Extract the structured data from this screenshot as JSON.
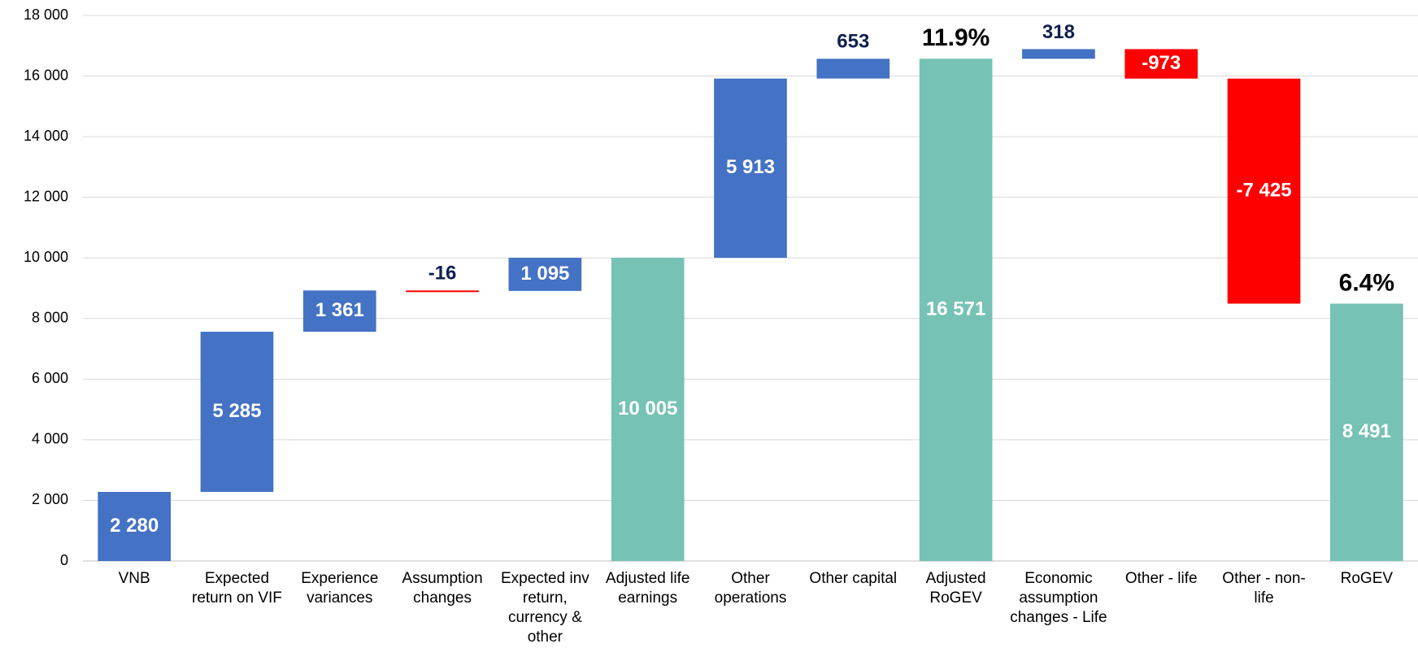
{
  "chart_data": {
    "type": "waterfall",
    "categories": [
      "VNB",
      "Expected return on VIF",
      "Experience variances",
      "Assumption changes",
      "Expected inv return, currency & other",
      "Adjusted life earnings",
      "Other operations",
      "Other capital",
      "Adjusted RoGEV",
      "Economic assumption changes - Life",
      "Other - life",
      "Other - non-life",
      "RoGEV"
    ],
    "values": [
      2280,
      5285,
      1361,
      -16,
      1095,
      10005,
      5913,
      653,
      16571,
      318,
      -973,
      -7425,
      8491
    ],
    "value_labels": [
      "2 280",
      "5 285",
      "1 361",
      "-16",
      "1 095",
      "10 005",
      "5 913",
      "653",
      "16 571",
      "318",
      "-973",
      "-7 425",
      "8 491"
    ],
    "is_total": [
      false,
      false,
      false,
      false,
      false,
      true,
      false,
      false,
      true,
      false,
      false,
      false,
      true
    ],
    "colors": {
      "increase": "#4472c4",
      "decrease": "#ff0000",
      "total": "#76c2b4"
    },
    "annotations": [
      {
        "text": "11.9%",
        "category": "Adjusted RoGEV"
      },
      {
        "text": "6.4%",
        "category": "RoGEV"
      }
    ],
    "ylim": [
      0,
      18000
    ],
    "yticks": [
      0,
      {
        "value": 2000,
        "label": "2 000"
      },
      {
        "value": 4000,
        "label": "4 000"
      },
      {
        "value": 6000,
        "label": "6 000"
      },
      {
        "value": 8000,
        "label": "8 000"
      },
      {
        "value": 10000,
        "label": "10 000"
      },
      {
        "value": 12000,
        "label": "12 000"
      },
      {
        "value": 14000,
        "label": "14 000"
      },
      {
        "value": 16000,
        "label": "16 000"
      },
      {
        "value": 18000,
        "label": "18 000"
      }
    ],
    "grid": true
  }
}
